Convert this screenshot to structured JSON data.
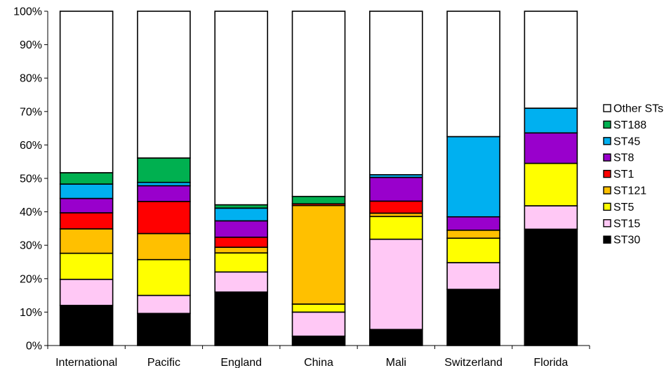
{
  "chart_data": {
    "type": "bar",
    "stacked": true,
    "normalized": true,
    "title": "",
    "xlabel": "",
    "ylabel": "",
    "ylim": [
      0,
      100
    ],
    "y_ticks": [
      {
        "value": 0,
        "label": "0%"
      },
      {
        "value": 10,
        "label": "10%"
      },
      {
        "value": 20,
        "label": "20%"
      },
      {
        "value": 30,
        "label": "30%"
      },
      {
        "value": 40,
        "label": "40%"
      },
      {
        "value": 50,
        "label": "50%"
      },
      {
        "value": 60,
        "label": "60%"
      },
      {
        "value": 70,
        "label": "70%"
      },
      {
        "value": 80,
        "label": "80%"
      },
      {
        "value": 90,
        "label": "90%"
      },
      {
        "value": 100,
        "label": "100%"
      }
    ],
    "grid": false,
    "legend_position": "right",
    "categories": [
      "International",
      "Pacific",
      "England",
      "China",
      "Mali",
      "Switzerland",
      "Florida"
    ],
    "series": [
      {
        "name": "ST30",
        "color": "#000000",
        "values": [
          12.0,
          9.6,
          16.0,
          2.8,
          4.8,
          16.8,
          34.8
        ]
      },
      {
        "name": "ST15",
        "color": "#FFC8F5",
        "values": [
          7.8,
          5.4,
          6.0,
          7.2,
          27.0,
          8.0,
          7.0
        ]
      },
      {
        "name": "ST5",
        "color": "#FFFF00",
        "values": [
          7.8,
          10.7,
          5.7,
          2.4,
          6.8,
          7.3,
          12.7
        ]
      },
      {
        "name": "ST121",
        "color": "#FFC000",
        "values": [
          7.3,
          7.8,
          1.7,
          29.5,
          1.0,
          2.4,
          0
        ]
      },
      {
        "name": "ST1",
        "color": "#FF0000",
        "values": [
          4.8,
          9.6,
          3.0,
          0.5,
          3.6,
          0,
          0
        ]
      },
      {
        "name": "ST8",
        "color": "#9900CC",
        "values": [
          4.3,
          4.7,
          4.9,
          0,
          7.1,
          4.0,
          9.1
        ]
      },
      {
        "name": "ST45",
        "color": "#00B0F0",
        "values": [
          4.3,
          1.0,
          3.8,
          0,
          0.8,
          24.0,
          7.4
        ]
      },
      {
        "name": "ST188",
        "color": "#00B050",
        "values": [
          3.4,
          7.3,
          1.0,
          2.2,
          0,
          0,
          0
        ]
      },
      {
        "name": "Other STs",
        "color": "#FFFFFF",
        "values": [
          48.3,
          43.9,
          57.9,
          55.4,
          48.9,
          37.5,
          29.0
        ]
      }
    ],
    "legend_order": [
      "Other STs",
      "ST188",
      "ST45",
      "ST8",
      "ST1",
      "ST121",
      "ST5",
      "ST15",
      "ST30"
    ]
  }
}
